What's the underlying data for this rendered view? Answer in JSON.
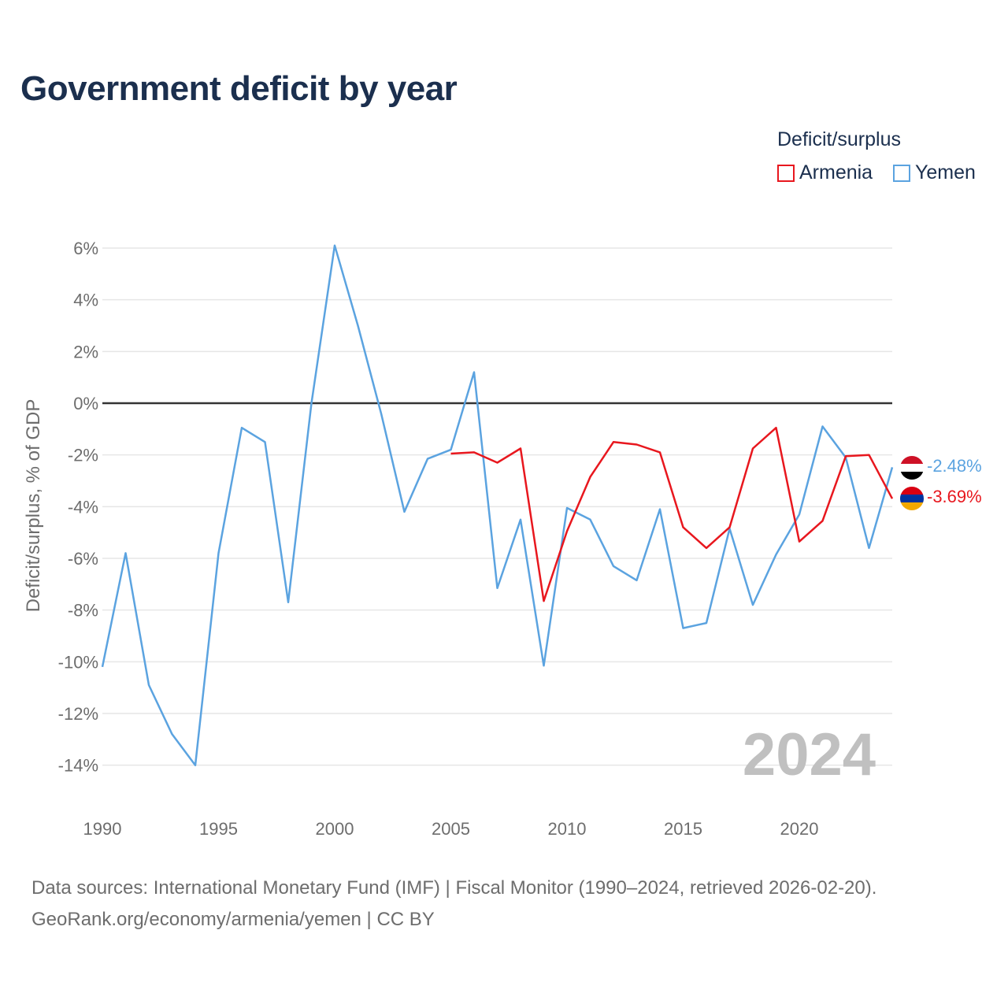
{
  "title": "Government deficit by year",
  "legend": {
    "title": "Deficit/surplus",
    "items": [
      {
        "name": "Armenia",
        "color": "#e8171e"
      },
      {
        "name": "Yemen",
        "color": "#5ba3e0"
      }
    ]
  },
  "sources": {
    "line1": "Data sources: International Monetary Fund (IMF) | Fiscal Monitor (1990–2024, retrieved 2026-02-20).",
    "line2": "GeoRank.org/economy/armenia/yemen | CC BY"
  },
  "chart_data": {
    "type": "line",
    "title": "Government deficit by year",
    "xlabel": "",
    "ylabel": "Deficit/surplus, % of GDP",
    "xlim": [
      1990,
      2024
    ],
    "ylim": [
      -15,
      6
    ],
    "x_ticks": [
      "1990",
      "1995",
      "2000",
      "2005",
      "2010",
      "2015",
      "2020"
    ],
    "y_ticks": [
      "6%",
      "4%",
      "2%",
      "0%",
      "-2%",
      "-4%",
      "-6%",
      "-8%",
      "-10%",
      "-12%",
      "-14%"
    ],
    "year_label": "2024",
    "series": [
      {
        "name": "Yemen",
        "color": "#5ba3e0",
        "end_label": "-2.48%",
        "x": [
          1990,
          1991,
          1992,
          1993,
          1994,
          1995,
          1996,
          1997,
          1998,
          1999,
          2000,
          2001,
          2002,
          2003,
          2004,
          2005,
          2006,
          2007,
          2008,
          2009,
          2010,
          2011,
          2012,
          2013,
          2014,
          2015,
          2016,
          2017,
          2018,
          2019,
          2020,
          2021,
          2022,
          2023,
          2024
        ],
        "values": [
          -10.2,
          -5.8,
          -10.9,
          -12.8,
          -14.0,
          -5.8,
          -0.95,
          -1.5,
          -7.7,
          0.0,
          6.1,
          3.0,
          -0.4,
          -4.2,
          -2.15,
          -1.8,
          1.2,
          -7.15,
          -4.5,
          -10.15,
          -4.05,
          -4.5,
          -6.3,
          -6.85,
          -4.1,
          -8.7,
          -8.5,
          -4.85,
          -7.8,
          -5.85,
          -4.3,
          -0.9,
          -2.1,
          -5.6,
          -2.48
        ]
      },
      {
        "name": "Armenia",
        "color": "#e8171e",
        "end_label": "-3.69%",
        "x": [
          2005,
          2006,
          2007,
          2008,
          2009,
          2010,
          2011,
          2012,
          2013,
          2014,
          2015,
          2016,
          2017,
          2018,
          2019,
          2020,
          2021,
          2022,
          2023,
          2024
        ],
        "values": [
          -1.95,
          -1.9,
          -2.3,
          -1.75,
          -7.65,
          -4.95,
          -2.85,
          -1.5,
          -1.6,
          -1.9,
          -4.8,
          -5.6,
          -4.8,
          -1.75,
          -0.95,
          -5.35,
          -4.55,
          -2.05,
          -2.0,
          -3.69
        ]
      }
    ]
  }
}
